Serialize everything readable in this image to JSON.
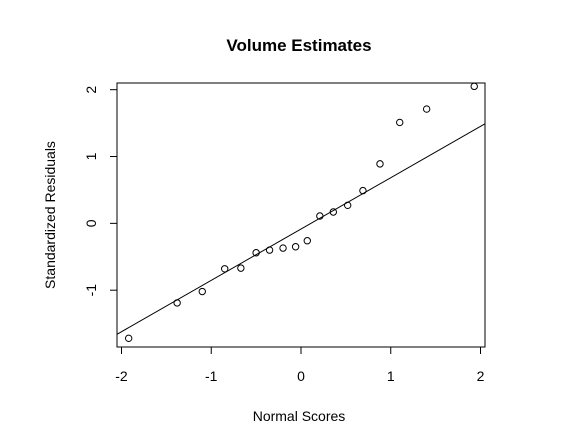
{
  "chart_data": {
    "type": "scatter",
    "title": "Volume Estimates",
    "xlabel": "Normal Scores",
    "ylabel": "Standardized Residuals",
    "xlim": [
      -2.05,
      2.05
    ],
    "ylim": [
      -1.85,
      2.1
    ],
    "x_ticks": [
      -2,
      -1,
      0,
      1,
      2
    ],
    "x_tick_labels": [
      "-2",
      "-1",
      "0",
      "1",
      "2"
    ],
    "y_ticks": [
      -1,
      0,
      1,
      2
    ],
    "y_tick_labels": [
      "-1",
      "0",
      "1",
      "2"
    ],
    "grid": false,
    "legend": "none",
    "marker": "open-circle",
    "colors": {
      "points": "#000000",
      "line": "#000000",
      "frame": "#000000",
      "background": "#ffffff"
    },
    "points": {
      "x": [
        -1.92,
        -1.38,
        -1.1,
        -0.85,
        -0.67,
        -0.5,
        -0.35,
        -0.2,
        -0.06,
        0.07,
        0.21,
        0.36,
        0.52,
        0.69,
        0.88,
        1.1,
        1.4,
        1.93
      ],
      "y": [
        -1.72,
        -1.19,
        -1.02,
        -0.68,
        -0.67,
        -0.44,
        -0.4,
        -0.37,
        -0.35,
        -0.26,
        0.11,
        0.17,
        0.27,
        0.49,
        0.89,
        1.51,
        1.71,
        2.05
      ]
    },
    "reference_line": {
      "x": [
        -2.05,
        2.05
      ],
      "y": [
        -1.66,
        1.49
      ]
    }
  }
}
